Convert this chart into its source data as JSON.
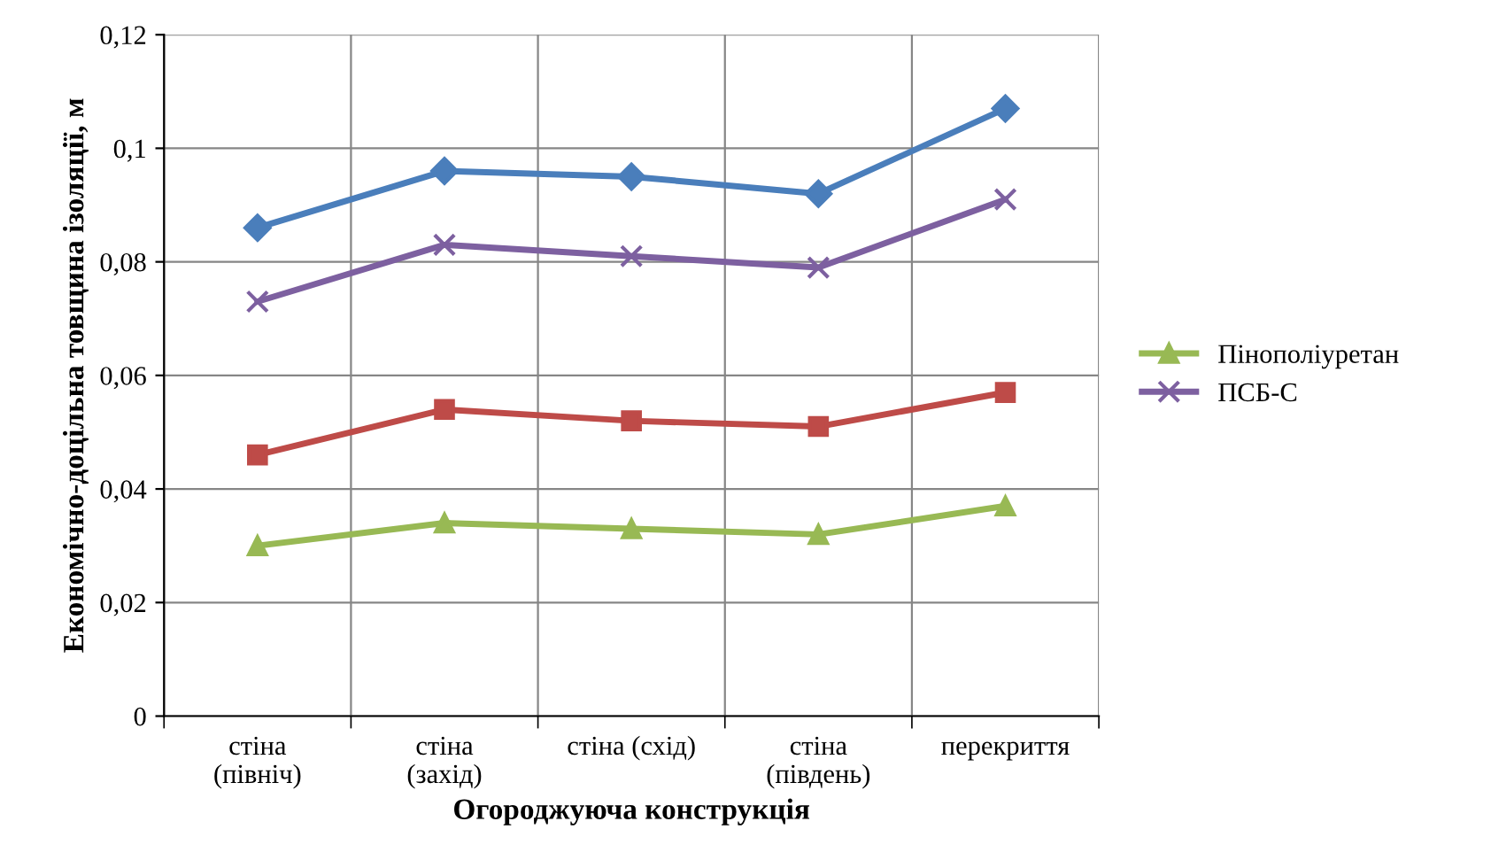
{
  "chart_data": {
    "type": "line",
    "xlabel": "Огороджуюча конструкція",
    "ylabel": "Економічно-доцільна товщина ізоляції, м",
    "categories": [
      "стіна\n(північ)",
      "стіна\n(захід)",
      "стіна (схід)",
      "стіна\n(південь)",
      "перекриття"
    ],
    "series": [
      {
        "color": "#4a7ebb",
        "marker": "diamond",
        "values": [
          0.086,
          0.096,
          0.095,
          0.092,
          0.107
        ]
      },
      {
        "color": "#be4b48",
        "marker": "square",
        "values": [
          0.046,
          0.054,
          0.052,
          0.051,
          0.057
        ]
      },
      {
        "name": "Пінополіуретан",
        "color": "#98b954",
        "marker": "triangle",
        "values": [
          0.03,
          0.034,
          0.033,
          0.032,
          0.037
        ]
      },
      {
        "name": "ПСБ-С",
        "color": "#7d60a0",
        "marker": "cross",
        "values": [
          0.073,
          0.083,
          0.081,
          0.079,
          0.091
        ]
      }
    ],
    "ylim": [
      0,
      0.12
    ],
    "yticks": [
      {
        "value": 0,
        "label": "0"
      },
      {
        "value": 0.02,
        "label": "0,02"
      },
      {
        "value": 0.04,
        "label": "0,04"
      },
      {
        "value": 0.06,
        "label": "0,06"
      },
      {
        "value": 0.08,
        "label": "0,08"
      },
      {
        "value": 0.1,
        "label": "0,1"
      },
      {
        "value": 0.12,
        "label": "0,12"
      }
    ],
    "grid": true,
    "legend": "right"
  }
}
